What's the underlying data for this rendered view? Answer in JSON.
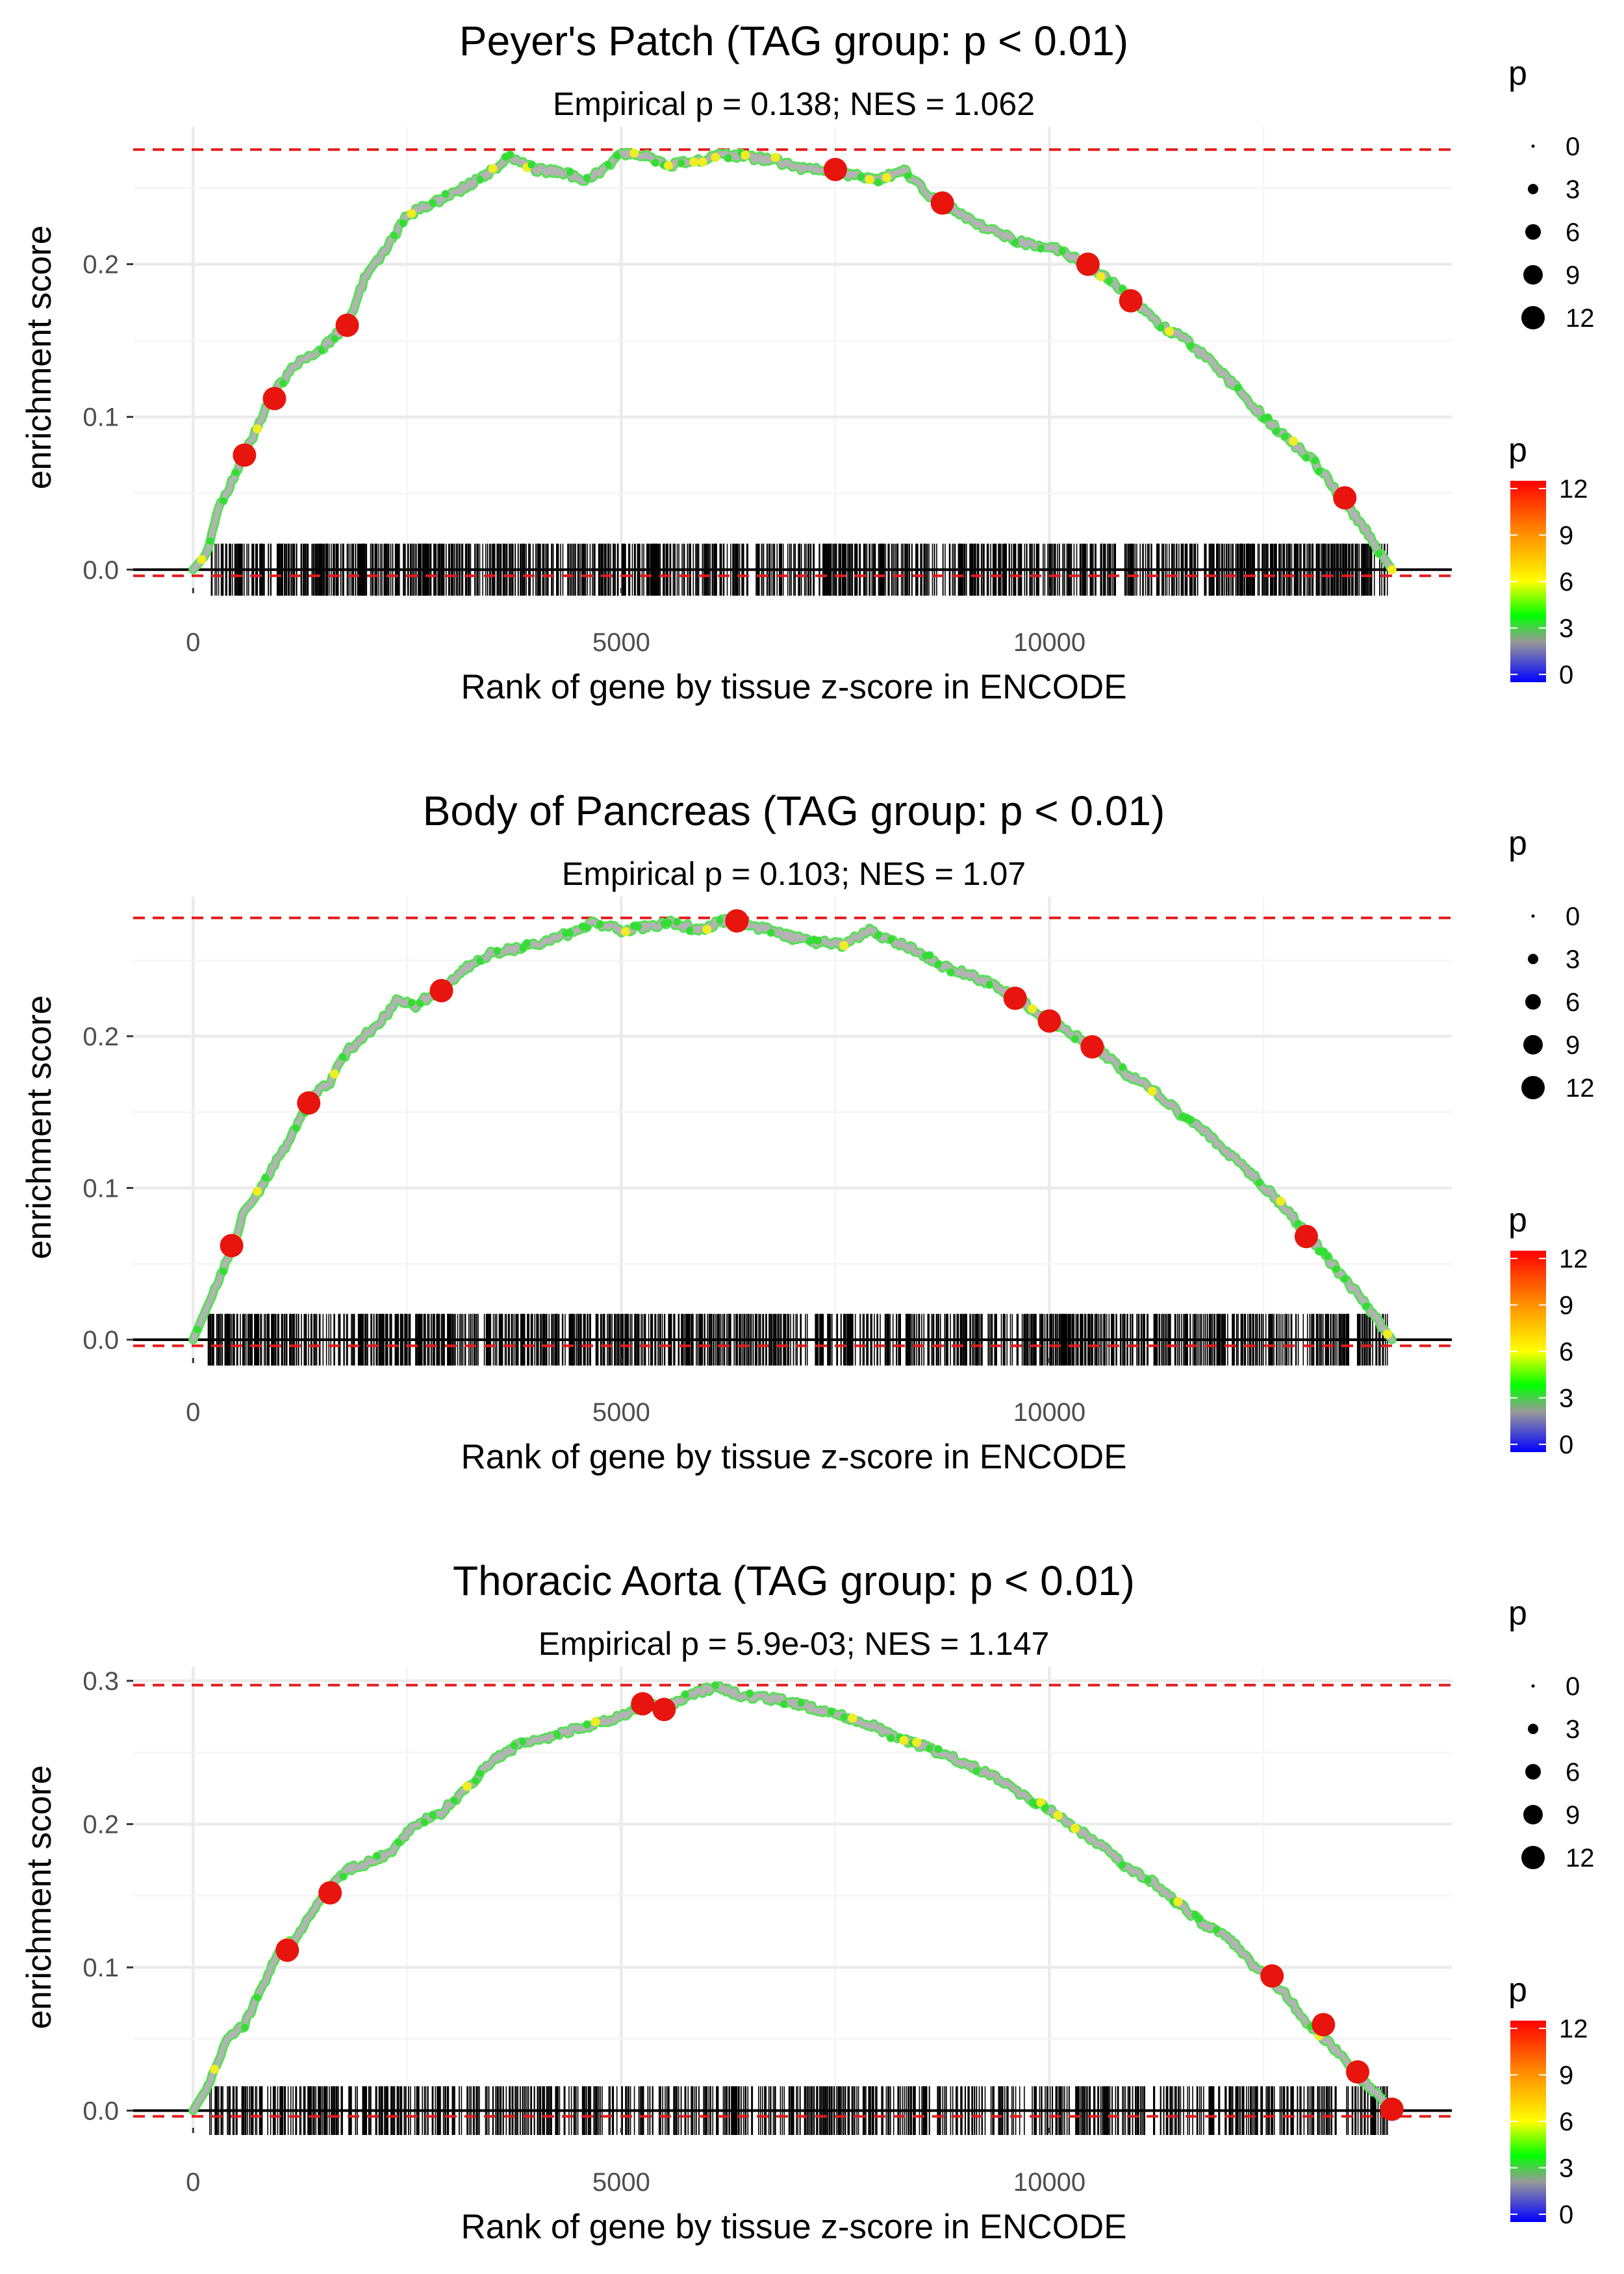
{
  "chart_data": [
    {
      "type": "line",
      "title": "Peyer's Patch (TAG group: p < 0.01)",
      "subtitle": "Empirical p = 0.138; NES = 1.062",
      "xlabel": "Rank of gene by tissue z-score in ENCODE",
      "ylabel": "enrichment score",
      "xlim": [
        -700,
        14700
      ],
      "ylim": [
        -0.012,
        0.29
      ],
      "xticks": [
        0,
        5000,
        10000
      ],
      "xtick_labels": [
        "0",
        "5000",
        "10000"
      ],
      "yticks": [
        0.0,
        0.1,
        0.2
      ],
      "ytick_labels": [
        "0.0",
        "0.1",
        "0.2"
      ],
      "max_es": 0.275,
      "min_es": -0.004,
      "curve_x": [
        0,
        150,
        300,
        600,
        900,
        1200,
        1500,
        1800,
        2000,
        2200,
        2500,
        2800,
        3100,
        3400,
        3700,
        4000,
        4300,
        4600,
        4800,
        5000,
        5300,
        5600,
        5900,
        6200,
        6500,
        6800,
        7100,
        7400,
        7700,
        8000,
        8300,
        8600,
        8900,
        9200,
        9500,
        9800,
        10100,
        10400,
        10700,
        11000,
        11300,
        11600,
        11900,
        12200,
        12500,
        12800,
        13100,
        13400,
        13700,
        14000
      ],
      "curve_y": [
        0.0,
        0.01,
        0.04,
        0.075,
        0.112,
        0.135,
        0.145,
        0.16,
        0.19,
        0.205,
        0.232,
        0.24,
        0.248,
        0.258,
        0.27,
        0.262,
        0.26,
        0.255,
        0.262,
        0.273,
        0.27,
        0.265,
        0.268,
        0.272,
        0.27,
        0.268,
        0.262,
        0.262,
        0.258,
        0.255,
        0.262,
        0.245,
        0.235,
        0.225,
        0.218,
        0.212,
        0.21,
        0.2,
        0.19,
        0.176,
        0.16,
        0.15,
        0.135,
        0.118,
        0.1,
        0.085,
        0.07,
        0.048,
        0.025,
        0.0
      ],
      "highlight_points": [
        [
          600,
          0.075
        ],
        [
          950,
          0.112
        ],
        [
          1800,
          0.16
        ],
        [
          7500,
          0.262
        ],
        [
          8750,
          0.24
        ],
        [
          10450,
          0.2
        ],
        [
          10950,
          0.176
        ],
        [
          13450,
          0.047
        ]
      ],
      "tick_x_range": [
        150,
        13950
      ],
      "tick_density": "dense",
      "size_legend": {
        "title": "p",
        "labels": [
          "0",
          "3",
          "6",
          "9",
          "12"
        ]
      },
      "color_legend": {
        "title": "p",
        "labels": [
          "12",
          "9",
          "6",
          "3",
          "0"
        ]
      }
    },
    {
      "type": "line",
      "title": "Body of Pancreas (TAG group: p < 0.01)",
      "subtitle": "Empirical p = 0.103; NES = 1.07",
      "xlabel": "Rank of gene by tissue z-score in ENCODE",
      "ylabel": "enrichment score",
      "xlim": [
        -700,
        14700
      ],
      "ylim": [
        -0.012,
        0.292
      ],
      "xticks": [
        0,
        5000,
        10000
      ],
      "xtick_labels": [
        "0",
        "5000",
        "10000"
      ],
      "yticks": [
        0.0,
        0.1,
        0.2
      ],
      "ytick_labels": [
        "0.0",
        "0.1",
        "0.2"
      ],
      "max_es": 0.278,
      "min_es": -0.004,
      "curve_x": [
        0,
        150,
        300,
        450,
        600,
        800,
        1000,
        1200,
        1400,
        1600,
        1800,
        2000,
        2200,
        2400,
        2600,
        2900,
        3200,
        3500,
        3800,
        4100,
        4400,
        4700,
        5000,
        5300,
        5600,
        5900,
        6200,
        6400,
        6700,
        7000,
        7300,
        7600,
        7900,
        8200,
        8500,
        8800,
        9100,
        9400,
        9700,
        10000,
        10300,
        10600,
        10900,
        11200,
        11500,
        11800,
        12100,
        12400,
        12700,
        13000,
        13300,
        13600,
        14000
      ],
      "curve_y": [
        0.0,
        0.02,
        0.04,
        0.06,
        0.085,
        0.1,
        0.12,
        0.14,
        0.16,
        0.17,
        0.19,
        0.2,
        0.21,
        0.225,
        0.22,
        0.232,
        0.245,
        0.255,
        0.258,
        0.262,
        0.268,
        0.275,
        0.27,
        0.272,
        0.275,
        0.27,
        0.276,
        0.275,
        0.27,
        0.265,
        0.262,
        0.26,
        0.27,
        0.262,
        0.255,
        0.245,
        0.24,
        0.232,
        0.222,
        0.21,
        0.2,
        0.19,
        0.175,
        0.165,
        0.15,
        0.138,
        0.122,
        0.107,
        0.09,
        0.07,
        0.05,
        0.03,
        0.0
      ],
      "highlight_points": [
        [
          450,
          0.062
        ],
        [
          1350,
          0.156
        ],
        [
          2900,
          0.23
        ],
        [
          6350,
          0.276
        ],
        [
          9600,
          0.225
        ],
        [
          10000,
          0.21
        ],
        [
          10500,
          0.193
        ],
        [
          13000,
          0.068
        ]
      ],
      "tick_x_range": [
        150,
        13950
      ],
      "tick_density": "dense",
      "size_legend": {
        "title": "p",
        "labels": [
          "0",
          "3",
          "6",
          "9",
          "12"
        ]
      },
      "color_legend": {
        "title": "p",
        "labels": [
          "12",
          "9",
          "6",
          "3",
          "0"
        ]
      }
    },
    {
      "type": "line",
      "title": "Thoracic Aorta (TAG group: p < 0.01)",
      "subtitle": "Empirical p = 5.9e-03; NES = 1.147",
      "xlabel": "Rank of gene by tissue z-score in ENCODE",
      "ylabel": "enrichment score",
      "xlim": [
        -700,
        14700
      ],
      "ylim": [
        -0.012,
        0.31
      ],
      "xticks": [
        0,
        5000,
        10000
      ],
      "xtick_labels": [
        "0",
        "5000",
        "10000"
      ],
      "yticks": [
        0.0,
        0.1,
        0.2,
        0.3
      ],
      "ytick_labels": [
        "0.0",
        "0.1",
        "0.2",
        "0.3"
      ],
      "max_es": 0.297,
      "min_es": -0.004,
      "curve_x": [
        0,
        200,
        400,
        600,
        800,
        1000,
        1200,
        1400,
        1600,
        1800,
        2000,
        2300,
        2600,
        2900,
        3200,
        3500,
        3800,
        4100,
        4400,
        4700,
        5000,
        5300,
        5500,
        5800,
        6100,
        6400,
        6700,
        7000,
        7300,
        7600,
        7900,
        8200,
        8500,
        8800,
        9100,
        9400,
        9700,
        10000,
        10300,
        10600,
        10900,
        11200,
        11500,
        11800,
        12100,
        12400,
        12700,
        13000,
        13300,
        13600,
        14000
      ],
      "curve_y": [
        0.0,
        0.02,
        0.05,
        0.06,
        0.085,
        0.112,
        0.12,
        0.14,
        0.155,
        0.168,
        0.172,
        0.18,
        0.2,
        0.208,
        0.225,
        0.245,
        0.255,
        0.26,
        0.265,
        0.27,
        0.275,
        0.284,
        0.28,
        0.29,
        0.296,
        0.29,
        0.288,
        0.285,
        0.28,
        0.275,
        0.27,
        0.26,
        0.255,
        0.248,
        0.24,
        0.232,
        0.22,
        0.21,
        0.198,
        0.185,
        0.17,
        0.16,
        0.145,
        0.13,
        0.12,
        0.1,
        0.085,
        0.062,
        0.045,
        0.025,
        0.0
      ],
      "highlight_points": [
        [
          5250,
          0.284
        ],
        [
          5500,
          0.28
        ],
        [
          1100,
          0.112
        ],
        [
          1600,
          0.152
        ],
        [
          12600,
          0.094
        ],
        [
          13200,
          0.06
        ],
        [
          13600,
          0.027
        ],
        [
          14000,
          0.001
        ]
      ],
      "tick_x_range": [
        150,
        13950
      ],
      "tick_density": "medium",
      "size_legend": {
        "title": "p",
        "labels": [
          "0",
          "3",
          "6",
          "9",
          "12"
        ]
      },
      "color_legend": {
        "title": "p",
        "labels": [
          "12",
          "9",
          "6",
          "3",
          "0"
        ]
      }
    }
  ],
  "colors": {
    "panel_background": "#ffffff",
    "grid": "#ebebeb",
    "curve": "#b3b3b3",
    "curve_green": "#33dd33",
    "curve_yellow": "#eeee22",
    "highlight": "#e8140e",
    "ref_line": "#e41a1c",
    "zero_line": "#000000",
    "gene_tick": "#000000",
    "gradient_stops": [
      "#ff0000",
      "#ff8800",
      "#ffff00",
      "#00ff00",
      "#999999",
      "#0000ff"
    ]
  }
}
